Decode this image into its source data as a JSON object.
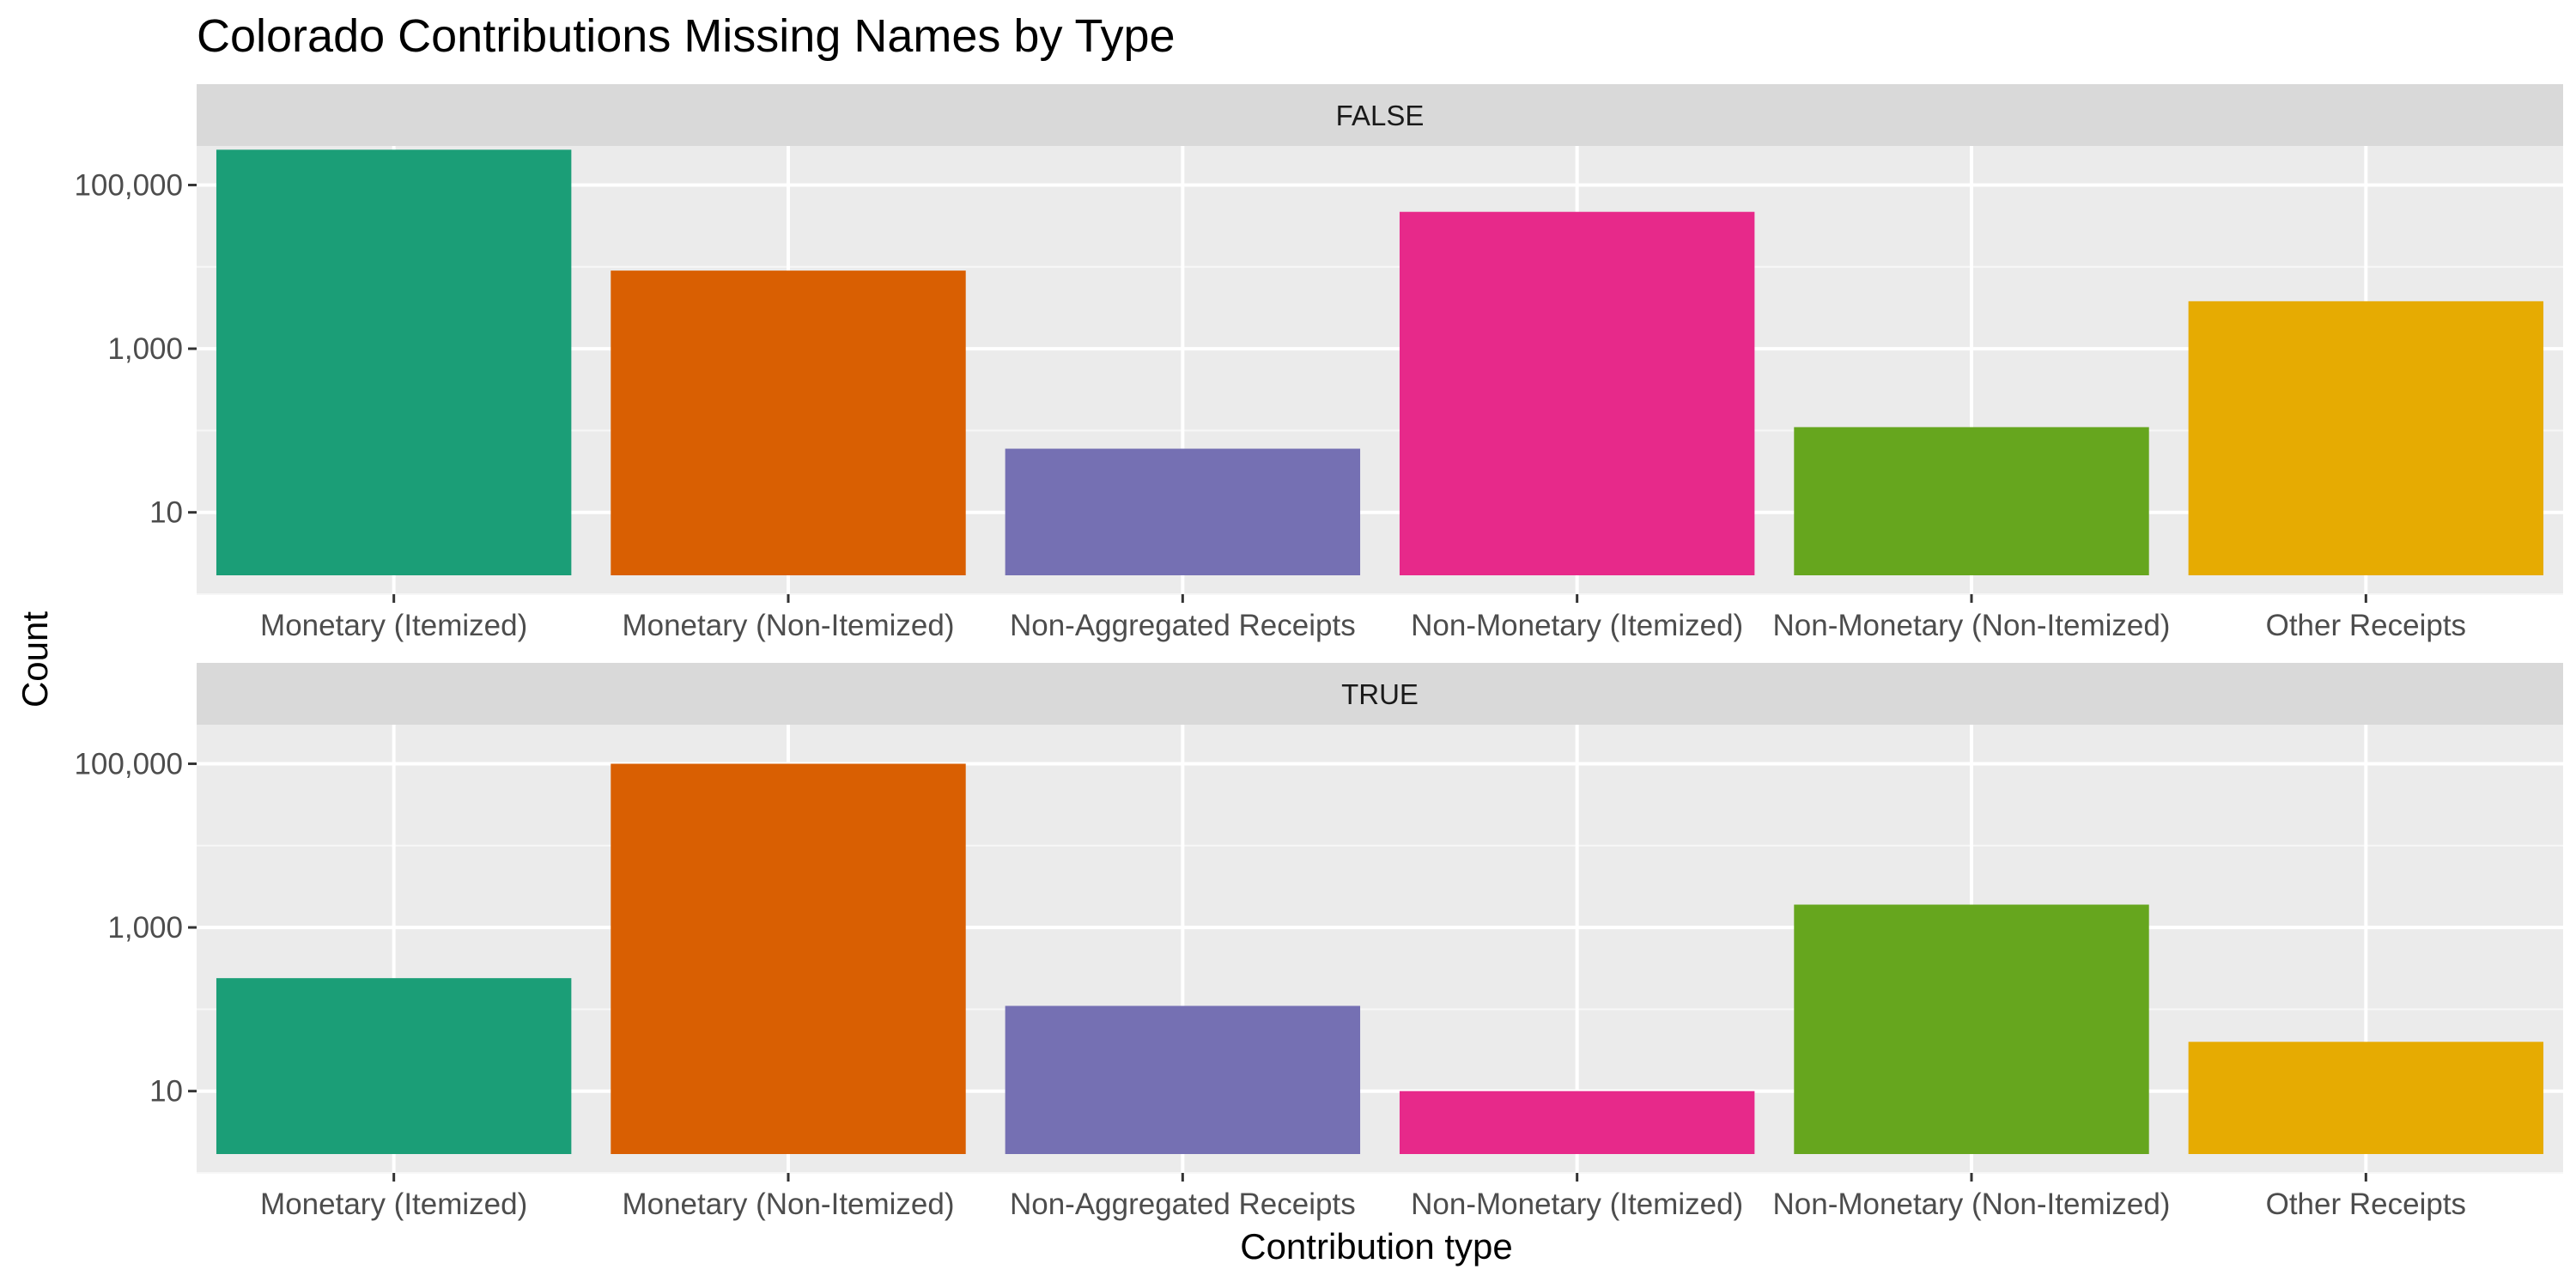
{
  "chart_data": {
    "type": "bar",
    "title": "Colorado Contributions Missing Names by Type",
    "xlabel": "Contribution type",
    "ylabel": "Count",
    "y_scale": "log10",
    "ylim": [
      1,
      300000
    ],
    "y_ticks": [
      10,
      1000,
      100000
    ],
    "y_tick_labels": [
      "10",
      "1,000",
      "100,000"
    ],
    "grid": true,
    "legend": "none",
    "categories": [
      "Monetary (Itemized)",
      "Monetary (Non-Itemized)",
      "Non-Aggregated Receipts",
      "Non-Monetary (Itemized)",
      "Non-Monetary (Non-Itemized)",
      "Other Receipts"
    ],
    "colors": [
      "#1B9E77",
      "#D95F02",
      "#7570B3",
      "#E7298A",
      "#66A61E",
      "#E6AB02"
    ],
    "panels": [
      {
        "strip": "FALSE",
        "values": [
          270000,
          9000,
          60,
          47000,
          110,
          3800
        ]
      },
      {
        "strip": "TRUE",
        "values": [
          240,
          100000,
          110,
          10,
          1900,
          40
        ]
      }
    ]
  }
}
